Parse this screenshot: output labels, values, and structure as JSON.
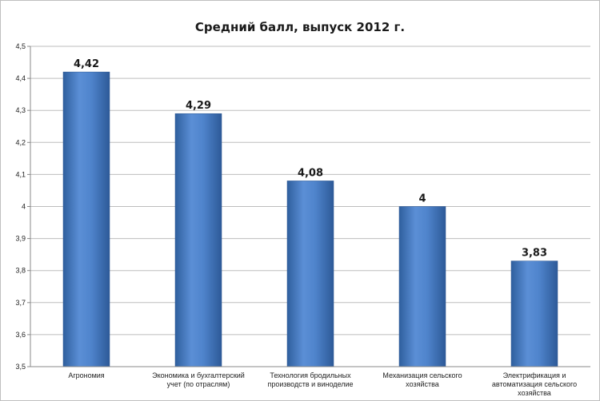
{
  "chart_data": {
    "type": "bar",
    "title": "Средний балл,  выпуск 2012 г.",
    "xlabel": "",
    "ylabel": "",
    "ylim": [
      3.5,
      4.5
    ],
    "yticks": [
      "3,5",
      "3,6",
      "3,7",
      "3,8",
      "3,9",
      "4",
      "4,1",
      "4,2",
      "4,3",
      "4,4",
      "4,5"
    ],
    "ytick_values": [
      3.5,
      3.6,
      3.7,
      3.8,
      3.9,
      4.0,
      4.1,
      4.2,
      4.3,
      4.4,
      4.5
    ],
    "grid": true,
    "legend": "none",
    "bar_color": "#4a7ec6",
    "categories": [
      [
        "Агрономия"
      ],
      [
        "Экономика и бухгалтерский",
        "учет (по отраслям)"
      ],
      [
        "Технология бродильных",
        "производств и виноделие"
      ],
      [
        "Механизация сельского",
        "хозяйства"
      ],
      [
        "Электрификация и",
        "автоматизация сельского",
        "хозяйства"
      ]
    ],
    "values": [
      4.42,
      4.29,
      4.08,
      4.0,
      3.83
    ],
    "value_labels": [
      "4,42",
      "4,29",
      "4,08",
      "4",
      "3,83"
    ]
  }
}
